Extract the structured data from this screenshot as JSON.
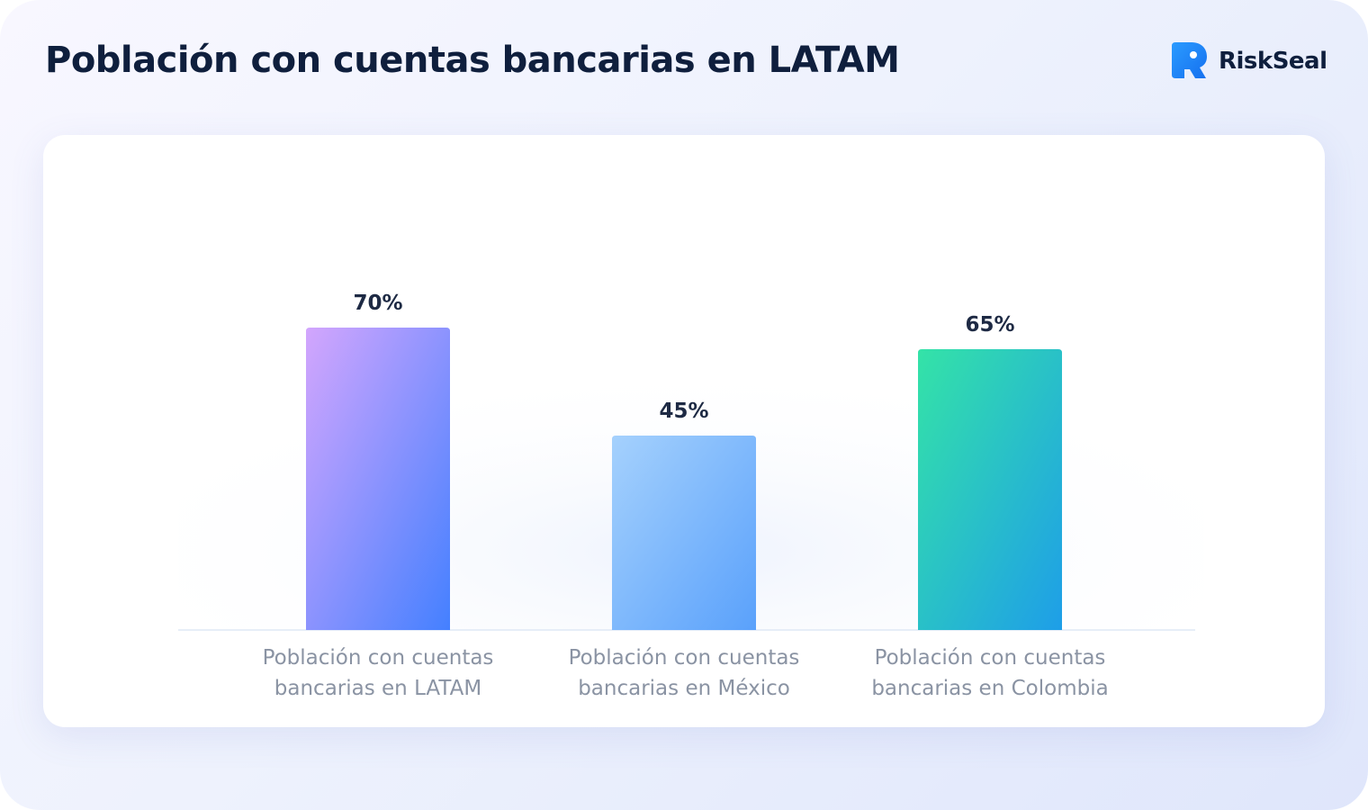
{
  "header": {
    "title": "Población con cuentas bancarias en LATAM",
    "brand": "RiskSeal",
    "brand_icon": "riskseal-logo-icon"
  },
  "colors": {
    "title": "#0f1f3d",
    "value_label": "#1e2a44",
    "category_label": "#8a93a3",
    "brand_blue": "#1e88f5"
  },
  "chart_data": {
    "type": "bar",
    "title": "Población con cuentas bancarias en LATAM",
    "xlabel": "",
    "ylabel": "",
    "ylim": [
      0,
      100
    ],
    "grid": false,
    "categories": [
      [
        "Población con cuentas",
        "bancarias en LATAM"
      ],
      [
        "Población con cuentas",
        "bancarias en México"
      ],
      [
        "Población con cuentas",
        "bancarias en Colombia"
      ]
    ],
    "values": [
      70,
      45,
      65
    ],
    "value_labels": [
      "70%",
      "45%",
      "65%"
    ],
    "bar_gradients": [
      [
        "#d3a6fd",
        "#4480ff"
      ],
      [
        "#a5d1fd",
        "#5aa1fb"
      ],
      [
        "#34e3a7",
        "#1e9ee8"
      ]
    ]
  }
}
